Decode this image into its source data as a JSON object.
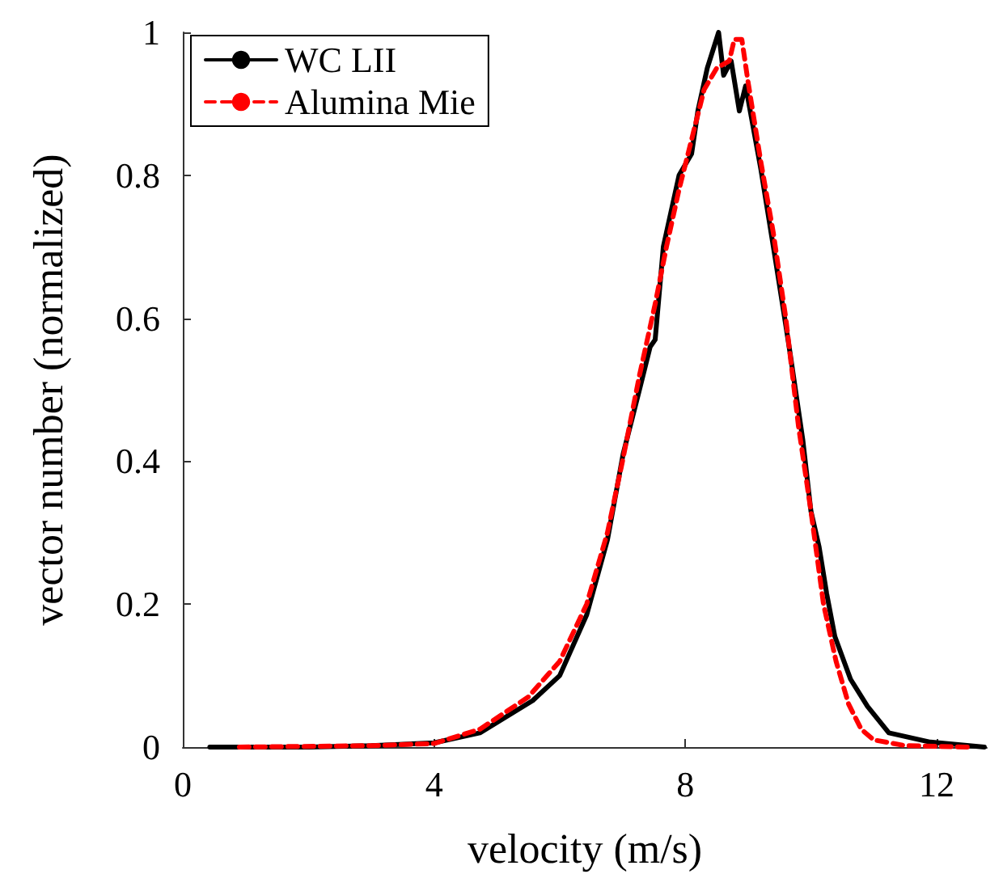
{
  "chart_data": {
    "type": "line",
    "xlabel": "velocity (m/s)",
    "ylabel": "vector number (normalized)",
    "xlim": [
      0,
      12.8
    ],
    "xticks": [
      0,
      4,
      8,
      12
    ],
    "ylim": [
      0,
      1
    ],
    "yticks": [
      0,
      0.2,
      0.4,
      0.6,
      0.8,
      1
    ],
    "grid": false,
    "legend": "top left",
    "marker": "none",
    "series": [
      {
        "name": "WC LII",
        "color": "#000000",
        "line_style": "solid",
        "x": [
          0.43,
          2,
          3,
          4,
          4.73,
          5.57,
          6.0,
          6.43,
          6.76,
          7.01,
          7.27,
          7.44,
          7.52,
          7.65,
          7.9,
          8.1,
          8.2,
          8.35,
          8.53,
          8.61,
          8.73,
          8.86,
          8.96,
          9.2,
          9.42,
          9.6,
          9.67,
          9.87,
          10.0,
          10.13,
          10.25,
          10.38,
          10.63,
          10.9,
          11.24,
          11.9,
          12.76
        ],
        "values": [
          0,
          0,
          0.002,
          0.006,
          0.02,
          0.065,
          0.1,
          0.185,
          0.29,
          0.41,
          0.5,
          0.56,
          0.57,
          0.7,
          0.8,
          0.83,
          0.89,
          0.95,
          1.0,
          0.94,
          0.96,
          0.89,
          0.925,
          0.81,
          0.69,
          0.59,
          0.55,
          0.43,
          0.33,
          0.28,
          0.215,
          0.155,
          0.095,
          0.057,
          0.02,
          0.007,
          0
        ]
      },
      {
        "name": "Alumina Mie",
        "color": "#ff0000",
        "line_style": "dashed",
        "x": [
          0.9,
          3,
          4.0,
          4.73,
          5.5,
          6.0,
          6.43,
          6.76,
          7.0,
          7.27,
          7.52,
          7.7,
          7.9,
          8.1,
          8.3,
          8.5,
          8.7,
          8.78,
          8.9,
          9.0,
          9.2,
          9.4,
          9.6,
          9.8,
          10.0,
          10.2,
          10.4,
          10.6,
          10.8,
          11.0,
          11.5,
          12.5
        ],
        "values": [
          0,
          0.002,
          0.005,
          0.025,
          0.07,
          0.12,
          0.2,
          0.3,
          0.4,
          0.52,
          0.62,
          0.7,
          0.78,
          0.85,
          0.92,
          0.95,
          0.96,
          0.99,
          0.99,
          0.93,
          0.82,
          0.72,
          0.6,
          0.45,
          0.33,
          0.2,
          0.12,
          0.06,
          0.025,
          0.01,
          0.002,
          0
        ]
      }
    ]
  }
}
